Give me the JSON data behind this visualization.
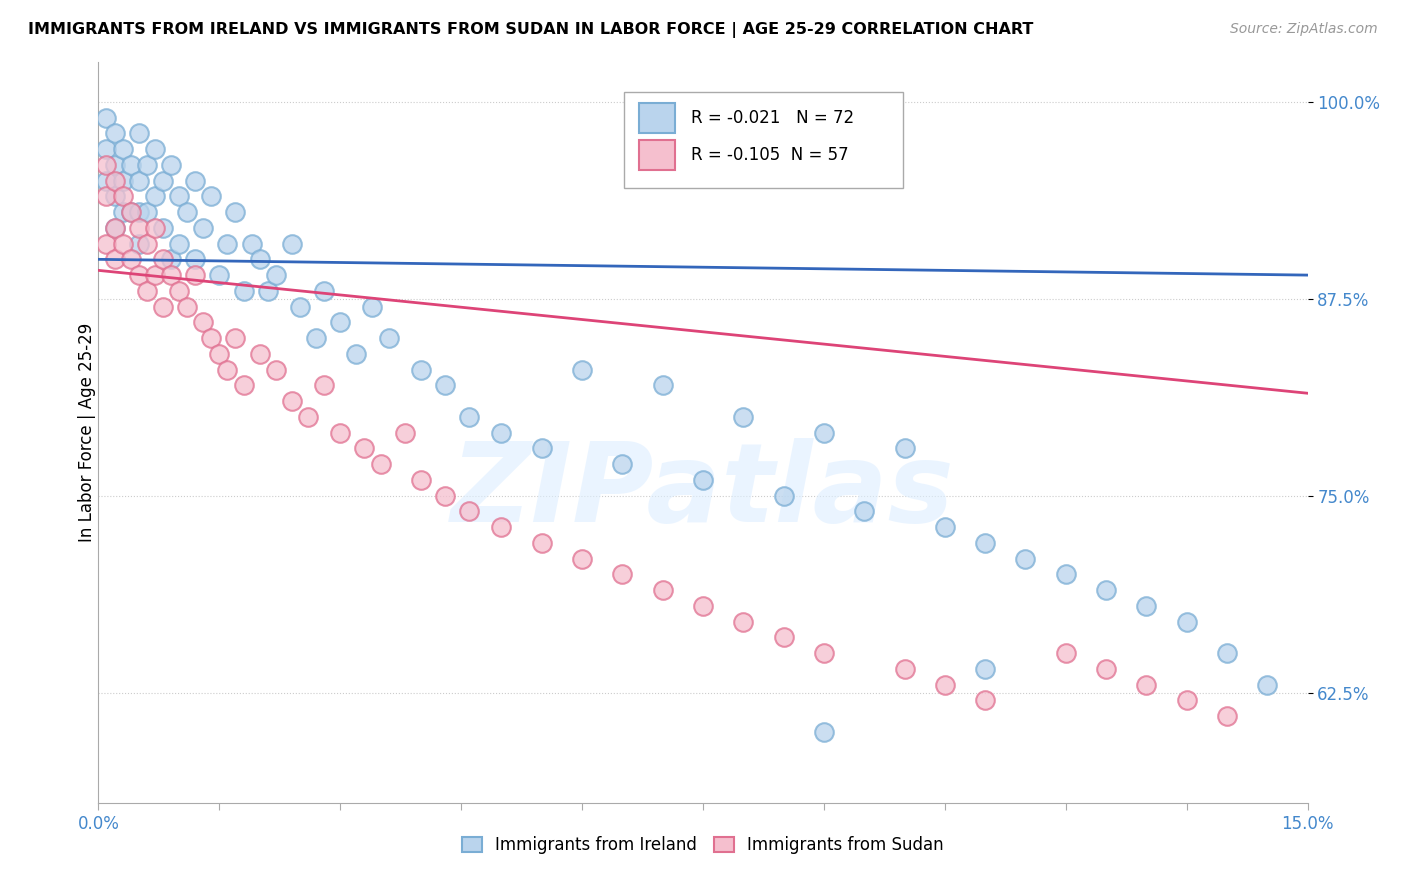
{
  "title": "IMMIGRANTS FROM IRELAND VS IMMIGRANTS FROM SUDAN IN LABOR FORCE | AGE 25-29 CORRELATION CHART",
  "source": "Source: ZipAtlas.com",
  "ylabel": "In Labor Force | Age 25-29",
  "xlim": [
    0.0,
    0.15
  ],
  "ylim": [
    0.555,
    1.025
  ],
  "yticks": [
    0.625,
    0.75,
    0.875,
    1.0
  ],
  "ytick_labels": [
    "62.5%",
    "75.0%",
    "87.5%",
    "100.0%"
  ],
  "ireland_color": "#bad4ed",
  "ireland_edge": "#7aadd4",
  "sudan_color": "#f5bfce",
  "sudan_edge": "#e07090",
  "ireland_line_color": "#3366bb",
  "sudan_line_color": "#dd4477",
  "ireland_R": -0.021,
  "ireland_N": 72,
  "sudan_R": -0.105,
  "sudan_N": 57,
  "ireland_line_y0": 0.9,
  "ireland_line_y1": 0.89,
  "sudan_line_y0": 0.893,
  "sudan_line_y1": 0.815,
  "ireland_x": [
    0.001,
    0.001,
    0.001,
    0.002,
    0.002,
    0.002,
    0.002,
    0.003,
    0.003,
    0.003,
    0.004,
    0.004,
    0.005,
    0.005,
    0.005,
    0.005,
    0.006,
    0.006,
    0.007,
    0.007,
    0.008,
    0.008,
    0.009,
    0.009,
    0.01,
    0.01,
    0.011,
    0.012,
    0.012,
    0.013,
    0.014,
    0.015,
    0.016,
    0.017,
    0.018,
    0.019,
    0.02,
    0.021,
    0.022,
    0.024,
    0.025,
    0.027,
    0.028,
    0.03,
    0.032,
    0.034,
    0.036,
    0.04,
    0.043,
    0.046,
    0.05,
    0.055,
    0.06,
    0.065,
    0.07,
    0.075,
    0.08,
    0.085,
    0.09,
    0.095,
    0.1,
    0.105,
    0.11,
    0.115,
    0.12,
    0.125,
    0.13,
    0.135,
    0.14,
    0.145,
    0.11,
    0.09
  ],
  "ireland_y": [
    0.99,
    0.97,
    0.95,
    0.98,
    0.96,
    0.94,
    0.92,
    0.97,
    0.95,
    0.93,
    0.96,
    0.93,
    0.98,
    0.95,
    0.93,
    0.91,
    0.96,
    0.93,
    0.97,
    0.94,
    0.95,
    0.92,
    0.96,
    0.9,
    0.94,
    0.91,
    0.93,
    0.95,
    0.9,
    0.92,
    0.94,
    0.89,
    0.91,
    0.93,
    0.88,
    0.91,
    0.9,
    0.88,
    0.89,
    0.91,
    0.87,
    0.85,
    0.88,
    0.86,
    0.84,
    0.87,
    0.85,
    0.83,
    0.82,
    0.8,
    0.79,
    0.78,
    0.83,
    0.77,
    0.82,
    0.76,
    0.8,
    0.75,
    0.79,
    0.74,
    0.78,
    0.73,
    0.72,
    0.71,
    0.7,
    0.69,
    0.68,
    0.67,
    0.65,
    0.63,
    0.64,
    0.6
  ],
  "sudan_x": [
    0.001,
    0.001,
    0.001,
    0.002,
    0.002,
    0.002,
    0.003,
    0.003,
    0.004,
    0.004,
    0.005,
    0.005,
    0.006,
    0.006,
    0.007,
    0.007,
    0.008,
    0.008,
    0.009,
    0.01,
    0.011,
    0.012,
    0.013,
    0.014,
    0.015,
    0.016,
    0.017,
    0.018,
    0.02,
    0.022,
    0.024,
    0.026,
    0.028,
    0.03,
    0.033,
    0.035,
    0.038,
    0.04,
    0.043,
    0.046,
    0.05,
    0.055,
    0.06,
    0.065,
    0.07,
    0.075,
    0.08,
    0.085,
    0.09,
    0.1,
    0.105,
    0.11,
    0.12,
    0.125,
    0.13,
    0.135,
    0.14
  ],
  "sudan_y": [
    0.96,
    0.94,
    0.91,
    0.95,
    0.92,
    0.9,
    0.94,
    0.91,
    0.93,
    0.9,
    0.92,
    0.89,
    0.91,
    0.88,
    0.92,
    0.89,
    0.9,
    0.87,
    0.89,
    0.88,
    0.87,
    0.89,
    0.86,
    0.85,
    0.84,
    0.83,
    0.85,
    0.82,
    0.84,
    0.83,
    0.81,
    0.8,
    0.82,
    0.79,
    0.78,
    0.77,
    0.79,
    0.76,
    0.75,
    0.74,
    0.73,
    0.72,
    0.71,
    0.7,
    0.69,
    0.68,
    0.67,
    0.66,
    0.65,
    0.64,
    0.63,
    0.62,
    0.65,
    0.64,
    0.63,
    0.62,
    0.61
  ],
  "watermark_text": "ZIPatlas",
  "watermark_color": "#d0dff0",
  "legend_box_color": "#f0f0f0",
  "legend_box_edge": "#cccccc"
}
